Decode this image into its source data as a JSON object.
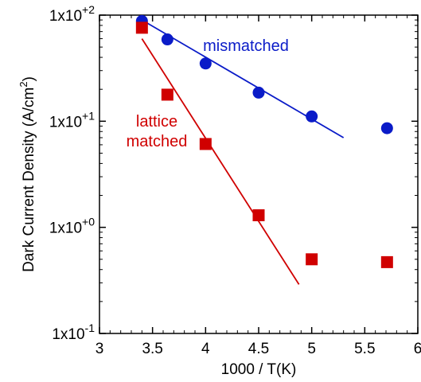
{
  "chart_data": {
    "type": "scatter",
    "xlabel": "1000 / T(K)",
    "ylabel_parts": [
      "Dark Current Density (A/cm",
      "2",
      ")"
    ],
    "xlim": [
      3,
      6
    ],
    "x_ticks": [
      3,
      3.5,
      4,
      4.5,
      5,
      5.5,
      6
    ],
    "x_tick_labels": [
      "3",
      "3.5",
      "4",
      "4.5",
      "5",
      "5.5",
      "6"
    ],
    "y_scale": "log",
    "ylim": [
      0.1,
      100
    ],
    "y_ticks": [
      {
        "value": 100,
        "mantissa": "1x10",
        "exponent": "+2"
      },
      {
        "value": 10,
        "mantissa": "1x10",
        "exponent": "+1"
      },
      {
        "value": 1,
        "mantissa": "1x10",
        "exponent": "+0"
      },
      {
        "value": 0.1,
        "mantissa": "1x10",
        "exponent": "-1"
      }
    ],
    "grid": false,
    "series": [
      {
        "label_lines": [
          "mismatched"
        ],
        "color": "#0a1bc8",
        "marker": "circle",
        "points": [
          {
            "x": 3.4,
            "y": 88
          },
          {
            "x": 3.64,
            "y": 59
          },
          {
            "x": 4.0,
            "y": 35
          },
          {
            "x": 4.5,
            "y": 18.6
          },
          {
            "x": 5.0,
            "y": 11.1
          },
          {
            "x": 5.71,
            "y": 8.6
          }
        ],
        "fit_line": [
          {
            "x": 3.4,
            "y": 90
          },
          {
            "x": 5.3,
            "y": 7.0
          }
        ]
      },
      {
        "label_lines": [
          "lattice",
          "matched"
        ],
        "color": "#d00000",
        "marker": "square",
        "points": [
          {
            "x": 3.4,
            "y": 76
          },
          {
            "x": 3.64,
            "y": 17.8
          },
          {
            "x": 4.0,
            "y": 6.1
          },
          {
            "x": 4.5,
            "y": 1.3
          },
          {
            "x": 5.0,
            "y": 0.5
          },
          {
            "x": 5.71,
            "y": 0.47
          }
        ],
        "fit_line": [
          {
            "x": 3.4,
            "y": 60
          },
          {
            "x": 4.88,
            "y": 0.29
          }
        ]
      }
    ]
  }
}
